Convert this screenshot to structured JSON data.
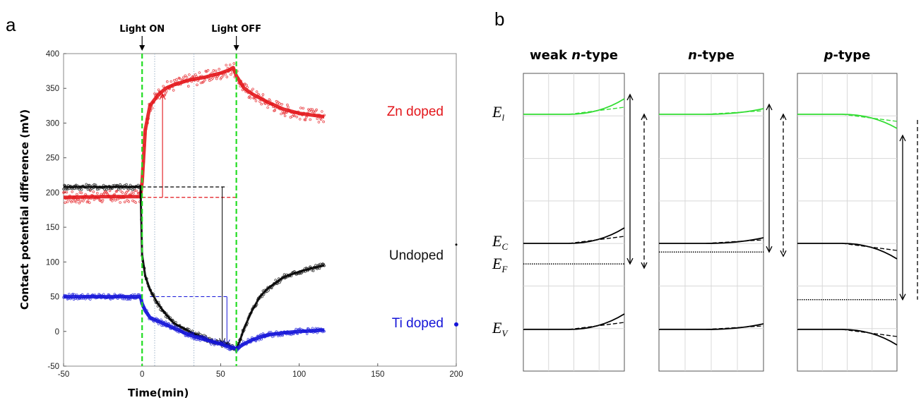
{
  "panel_a": {
    "letter": "a"
  },
  "panel_b": {
    "letter": "b"
  },
  "chart_data": [
    {
      "type": "scatter",
      "xlabel": "Time(min)",
      "ylabel": "Contact potential difference (mV)",
      "xlim": [
        -50,
        200
      ],
      "ylim": [
        -50,
        400
      ],
      "xticks": [
        "-50",
        "0",
        "50",
        "100",
        "150",
        "200"
      ],
      "yticks": [
        "-50",
        "0",
        "50",
        "100",
        "150",
        "200",
        "250",
        "300",
        "350",
        "400"
      ],
      "events": [
        {
          "label": "Light ON",
          "x": 0
        },
        {
          "label": "Light OFF",
          "x": 60
        }
      ],
      "series": [
        {
          "name": "Zn doped",
          "color": "#e3161b",
          "x": [
            -50,
            -25,
            -1,
            0,
            2,
            5,
            10,
            15,
            20,
            30,
            40,
            50,
            55,
            58,
            60,
            65,
            70,
            80,
            90,
            100,
            110,
            116
          ],
          "y": [
            193,
            194,
            194,
            215,
            290,
            325,
            340,
            350,
            355,
            362,
            366,
            372,
            376,
            380,
            368,
            350,
            342,
            330,
            320,
            314,
            311,
            309
          ]
        },
        {
          "name": "Undoped",
          "color": "#000000",
          "x": [
            -50,
            -25,
            -1,
            0,
            2,
            5,
            10,
            15,
            20,
            30,
            40,
            50,
            55,
            60,
            62,
            65,
            70,
            75,
            80,
            90,
            100,
            110,
            116
          ],
          "y": [
            208,
            208,
            208,
            110,
            80,
            60,
            40,
            25,
            12,
            0,
            -10,
            -18,
            -20,
            -25,
            -15,
            5,
            30,
            50,
            62,
            78,
            86,
            92,
            95
          ]
        },
        {
          "name": "Ti doped",
          "color": "#1515d8",
          "x": [
            -50,
            -25,
            -1,
            0,
            2,
            5,
            10,
            15,
            20,
            30,
            40,
            50,
            55,
            60,
            65,
            70,
            80,
            90,
            100,
            110,
            116
          ],
          "y": [
            50,
            50,
            50,
            40,
            30,
            20,
            15,
            10,
            5,
            -5,
            -12,
            -18,
            -22,
            -25,
            -18,
            -12,
            -5,
            -2,
            0,
            1,
            2
          ]
        }
      ]
    },
    {
      "type": "diagram",
      "panels": [
        {
          "title_parts": [
            {
              "text": "weak ",
              "italic": false
            },
            {
              "text": "n",
              "italic": true
            },
            {
              "text": "-type",
              "italic": false
            }
          ],
          "bend": "up",
          "ef": 0.93
        },
        {
          "title_parts": [
            {
              "text": "n",
              "italic": true
            },
            {
              "text": "-type",
              "italic": false
            }
          ],
          "bend": "up-small",
          "ef": 0.9
        },
        {
          "title_parts": [
            {
              "text": "p",
              "italic": true
            },
            {
              "text": "-type",
              "italic": false
            }
          ],
          "bend": "down",
          "ef": 0.45
        }
      ],
      "levels": [
        {
          "main": "E",
          "sub": "l",
          "color": "#33dd33"
        },
        {
          "main": "E",
          "sub": "C",
          "color": "#000000"
        },
        {
          "main": "E",
          "sub": "F",
          "color": "#000000"
        },
        {
          "main": "E",
          "sub": "V",
          "color": "#000000"
        }
      ]
    }
  ]
}
